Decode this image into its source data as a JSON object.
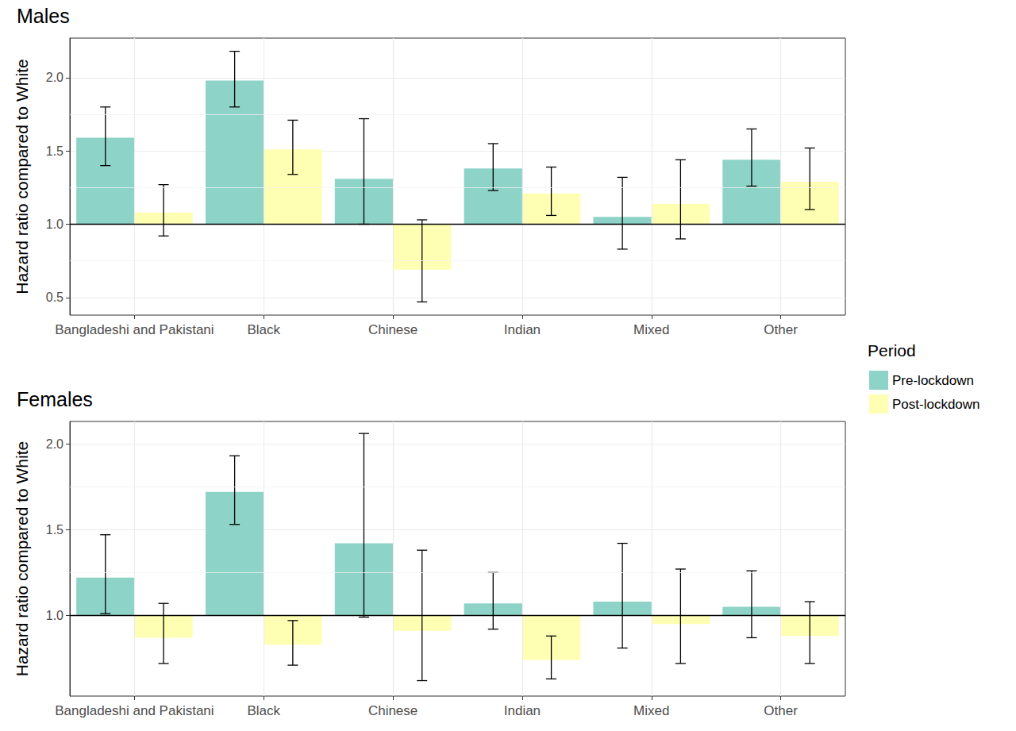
{
  "chart_data": [
    {
      "type": "bar",
      "title": "Males",
      "categories": [
        "Bangladeshi and Pakistani",
        "Black",
        "Chinese",
        "Indian",
        "Mixed",
        "Other"
      ],
      "ylabel": "Hazard ratio compared to White",
      "baseline": 1,
      "ylim": [
        0.38,
        2.27
      ],
      "yticks": [
        0.5,
        {
          "value": 1,
          "label": "1.0"
        },
        1.5,
        {
          "value": 2,
          "label": "2.0"
        }
      ],
      "grid": true,
      "legend": "right",
      "legend_title": "Period",
      "series": [
        {
          "name": "Pre-lockdown",
          "color": "#8dd3c7",
          "values": [
            1.59,
            1.98,
            1.31,
            1.38,
            1.05,
            1.44
          ],
          "lower": [
            1.4,
            1.8,
            1.0,
            1.23,
            0.83,
            1.26
          ],
          "upper": [
            1.8,
            2.18,
            1.72,
            1.55,
            1.32,
            1.65
          ]
        },
        {
          "name": "Post-lockdown",
          "color": "#ffffb3",
          "values": [
            1.08,
            1.51,
            0.69,
            1.21,
            1.14,
            1.29
          ],
          "lower": [
            0.92,
            1.34,
            0.47,
            1.06,
            0.9,
            1.1
          ],
          "upper": [
            1.27,
            1.71,
            1.03,
            1.39,
            1.44,
            1.52
          ]
        }
      ]
    },
    {
      "type": "bar",
      "title": "Females",
      "categories": [
        "Bangladeshi and Pakistani",
        "Black",
        "Chinese",
        "Indian",
        "Mixed",
        "Other"
      ],
      "ylabel": "Hazard ratio compared to White",
      "baseline": 1,
      "ylim": [
        0.53,
        2.13
      ],
      "yticks": [
        {
          "value": 1,
          "label": "1.0"
        },
        1.5,
        {
          "value": 2,
          "label": "2.0"
        }
      ],
      "grid": true,
      "series": [
        {
          "name": "Pre-lockdown",
          "color": "#8dd3c7",
          "values": [
            1.22,
            1.72,
            1.42,
            1.07,
            1.08,
            1.05
          ],
          "lower": [
            1.01,
            1.53,
            0.99,
            0.92,
            0.81,
            0.87
          ],
          "upper": [
            1.47,
            1.93,
            2.06,
            1.25,
            1.42,
            1.26
          ]
        },
        {
          "name": "Post-lockdown",
          "color": "#ffffb3",
          "values": [
            0.87,
            0.83,
            0.91,
            0.74,
            0.95,
            0.88
          ],
          "lower": [
            0.72,
            0.71,
            0.62,
            0.63,
            0.72,
            0.72
          ],
          "upper": [
            1.07,
            0.97,
            1.38,
            0.88,
            1.27,
            1.08
          ]
        }
      ]
    }
  ]
}
